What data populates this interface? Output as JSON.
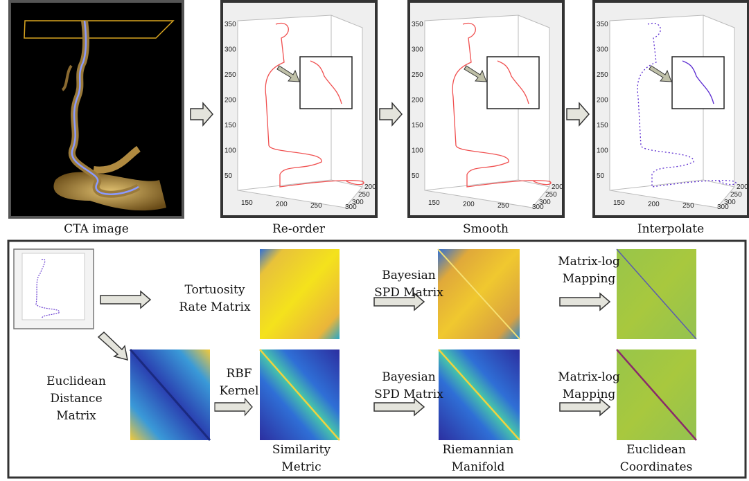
{
  "top": {
    "panels": [
      {
        "caption": "CTA image"
      },
      {
        "caption": "Re-order",
        "yticks": [
          "350",
          "300",
          "250",
          "200",
          "150",
          "100",
          "50"
        ],
        "xticks": [
          "150",
          "200",
          "250",
          "300"
        ],
        "zticks": [
          "300",
          "250",
          "200"
        ]
      },
      {
        "caption": "Smooth",
        "yticks": [
          "350",
          "300",
          "250",
          "200",
          "150",
          "100",
          "50"
        ],
        "xticks": [
          "150",
          "200",
          "250",
          "300"
        ],
        "zticks": [
          "300",
          "250",
          "200"
        ]
      },
      {
        "caption": "Interpolate",
        "yticks": [
          "350",
          "300",
          "250",
          "200",
          "150",
          "100",
          "50"
        ],
        "xticks": [
          "150",
          "200",
          "250",
          "300"
        ],
        "zticks": [
          "300",
          "250",
          "200"
        ]
      }
    ]
  },
  "bottom": {
    "tortuosity": [
      "Tortuosity",
      "Rate Matrix"
    ],
    "euclidean_distance": [
      "Euclidean",
      "Distance",
      "Matrix"
    ],
    "rbf": [
      "RBF",
      "Kernel"
    ],
    "bayesian_top": [
      "Bayesian",
      "SPD Matrix"
    ],
    "bayesian_bottom": [
      "Bayesian",
      "SPD Matrix"
    ],
    "matrixlog_top": [
      "Matrix-log",
      "Mapping"
    ],
    "matrixlog_bottom": [
      "Matrix-log",
      "Mapping"
    ],
    "similarity": [
      "Similarity",
      "Metric"
    ],
    "riemannian": [
      "Riemannian",
      "Manifold"
    ],
    "euclidean_coords": [
      "Euclidean",
      "Coordinates"
    ]
  }
}
